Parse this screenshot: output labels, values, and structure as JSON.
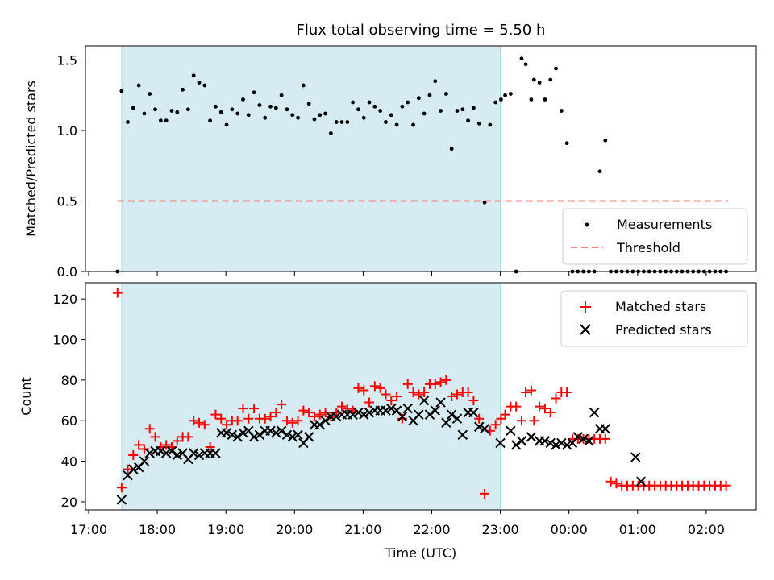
{
  "figure": {
    "title": "Flux total observing time = 5.50 h",
    "xlabel": "Time (UTC)",
    "x_tick_labels": [
      "17:00",
      "18:00",
      "19:00",
      "20:00",
      "21:00",
      "22:00",
      "23:00",
      "00:00",
      "01:00",
      "02:00"
    ]
  },
  "colors": {
    "span": "#add8e6",
    "measurements": "#000000",
    "threshold": "#ff7f7f",
    "matched": "#ff0000",
    "predicted": "#000000"
  },
  "chart_data": [
    {
      "type": "scatter",
      "panel": "top",
      "ylabel": "Matched/Predicted stars",
      "ylim": [
        0,
        1.6
      ],
      "y_ticks": [
        0.0,
        0.5,
        1.0,
        1.5
      ],
      "y_tick_labels": [
        "0.0",
        "0.5",
        "1.0",
        "1.5"
      ],
      "x_unit": "hours after 17:00 UTC",
      "shaded_span": [
        0.48,
        6.0
      ],
      "threshold": {
        "name": "Threshold",
        "value": 0.5,
        "x_range": [
          0.42,
          9.32
        ]
      },
      "legend": {
        "placement": "lower right",
        "entries": [
          "Measurements",
          "Threshold"
        ]
      },
      "series": [
        {
          "name": "Measurements",
          "x": [
            0.42,
            0.48,
            0.57,
            0.65,
            0.73,
            0.81,
            0.89,
            0.97,
            1.05,
            1.13,
            1.21,
            1.29,
            1.37,
            1.45,
            1.53,
            1.61,
            1.69,
            1.77,
            1.85,
            1.93,
            2.01,
            2.09,
            2.17,
            2.25,
            2.33,
            2.41,
            2.49,
            2.57,
            2.65,
            2.73,
            2.81,
            2.89,
            2.97,
            3.05,
            3.13,
            3.21,
            3.29,
            3.37,
            3.45,
            3.53,
            3.61,
            3.69,
            3.77,
            3.85,
            3.93,
            4.01,
            4.09,
            4.17,
            4.25,
            4.33,
            4.41,
            4.49,
            4.57,
            4.65,
            4.73,
            4.81,
            4.89,
            4.97,
            5.05,
            5.13,
            5.21,
            5.29,
            5.37,
            5.45,
            5.53,
            5.61,
            5.69,
            5.77,
            5.85,
            5.93,
            6.01,
            6.07,
            6.15,
            6.23,
            6.31,
            6.37,
            6.45,
            6.49,
            6.57,
            6.65,
            6.73,
            6.81,
            6.89,
            6.97,
            7.05,
            7.13,
            7.21,
            7.29,
            7.37,
            7.45,
            7.53,
            7.61,
            7.69,
            7.77,
            7.85,
            7.93,
            8.01,
            8.09,
            8.17,
            8.25,
            8.33,
            8.41,
            8.49,
            8.57,
            8.65,
            8.73,
            8.81,
            8.89,
            8.97,
            9.05,
            9.13,
            9.21,
            9.29
          ],
          "y": [
            0.0,
            1.28,
            1.06,
            1.16,
            1.32,
            1.12,
            1.26,
            1.15,
            1.07,
            1.07,
            1.14,
            1.13,
            1.29,
            1.15,
            1.39,
            1.34,
            1.32,
            1.07,
            1.17,
            1.13,
            1.04,
            1.15,
            1.12,
            1.22,
            1.11,
            1.27,
            1.18,
            1.09,
            1.17,
            1.16,
            1.25,
            1.15,
            1.11,
            1.09,
            1.32,
            1.19,
            1.08,
            1.11,
            1.12,
            0.98,
            1.06,
            1.06,
            1.06,
            1.2,
            1.15,
            1.09,
            1.2,
            1.17,
            1.14,
            1.06,
            1.11,
            1.04,
            1.17,
            1.2,
            1.04,
            1.23,
            1.12,
            1.25,
            1.35,
            1.14,
            1.26,
            0.87,
            1.14,
            1.15,
            1.07,
            1.16,
            1.05,
            0.49,
            1.04,
            1.2,
            1.22,
            1.25,
            1.26,
            0.0,
            1.51,
            1.47,
            1.22,
            1.36,
            1.34,
            1.22,
            1.36,
            1.44,
            1.14,
            0.91,
            0.0,
            0.0,
            0.0,
            0.0,
            0.0,
            0.71,
            0.93,
            0.0,
            0.0,
            0.0,
            0.0,
            0.0,
            0.0,
            0.0,
            0.0,
            0.0,
            0.0,
            0.0,
            0.0,
            0.0,
            0.0,
            0.0,
            0.0,
            0.0,
            0.0,
            0.0,
            0.0,
            0.0,
            0.0
          ]
        }
      ]
    },
    {
      "type": "scatter",
      "panel": "bottom",
      "ylabel": "Count",
      "ylim": [
        16,
        128
      ],
      "y_ticks": [
        20,
        40,
        60,
        80,
        100,
        120
      ],
      "y_tick_labels": [
        "20",
        "40",
        "60",
        "80",
        "100",
        "120"
      ],
      "x_unit": "hours after 17:00 UTC",
      "shaded_span": [
        0.48,
        6.0
      ],
      "legend": {
        "placement": "upper right",
        "entries": [
          "Matched stars",
          "Predicted stars"
        ]
      },
      "series": [
        {
          "name": "Matched stars",
          "marker": "+",
          "x": [
            0.42,
            0.48,
            0.57,
            0.65,
            0.73,
            0.81,
            0.89,
            0.97,
            1.05,
            1.13,
            1.21,
            1.29,
            1.37,
            1.45,
            1.53,
            1.61,
            1.69,
            1.77,
            1.85,
            1.93,
            2.01,
            2.09,
            2.17,
            2.25,
            2.33,
            2.41,
            2.49,
            2.57,
            2.65,
            2.73,
            2.81,
            2.89,
            2.97,
            3.05,
            3.13,
            3.21,
            3.29,
            3.37,
            3.45,
            3.53,
            3.61,
            3.69,
            3.77,
            3.85,
            3.93,
            4.01,
            4.09,
            4.17,
            4.25,
            4.33,
            4.41,
            4.49,
            4.57,
            4.65,
            4.73,
            4.81,
            4.89,
            4.97,
            5.05,
            5.13,
            5.21,
            5.29,
            5.37,
            5.45,
            5.53,
            5.61,
            5.69,
            5.77,
            5.85,
            5.93,
            6.01,
            6.07,
            6.15,
            6.23,
            6.31,
            6.37,
            6.45,
            6.49,
            6.57,
            6.65,
            6.73,
            6.81,
            6.89,
            6.97,
            7.05,
            7.13,
            7.21,
            7.29,
            7.37,
            7.45,
            7.53,
            7.61,
            7.69,
            7.77,
            7.85,
            7.93,
            8.01,
            8.09,
            8.17,
            8.25,
            8.33,
            8.41,
            8.49,
            8.57,
            8.65,
            8.73,
            8.81,
            8.89,
            8.97,
            9.05,
            9.13,
            9.21,
            9.29
          ],
          "y": [
            123,
            27,
            36,
            43,
            48,
            46,
            56,
            52,
            47,
            48,
            47,
            50,
            52,
            52,
            60,
            59,
            58,
            47,
            63,
            61,
            58,
            60,
            60,
            66,
            61,
            66,
            61,
            61,
            62,
            64,
            68,
            60,
            59,
            60,
            65,
            64,
            62,
            63,
            64,
            62,
            64,
            67,
            66,
            65,
            76,
            75,
            69,
            77,
            76,
            73,
            70,
            72,
            61,
            78,
            74,
            73,
            74,
            78,
            78,
            79,
            80,
            72,
            73,
            74,
            74,
            70,
            61,
            24,
            55,
            58,
            61,
            63,
            67,
            67,
            60,
            74,
            75,
            60,
            67,
            66,
            64,
            71,
            74,
            74,
            51,
            51,
            51,
            51,
            51,
            51,
            51,
            30,
            29,
            28,
            28,
            28,
            28,
            28,
            28,
            28,
            28,
            28,
            28,
            28,
            28,
            28,
            28,
            28,
            28,
            28,
            28,
            28,
            28
          ]
        },
        {
          "name": "Predicted stars",
          "marker": "x",
          "x": [
            0.48,
            0.57,
            0.65,
            0.73,
            0.81,
            0.89,
            0.97,
            1.05,
            1.13,
            1.21,
            1.29,
            1.37,
            1.45,
            1.53,
            1.61,
            1.69,
            1.77,
            1.85,
            1.93,
            2.01,
            2.09,
            2.17,
            2.25,
            2.33,
            2.41,
            2.49,
            2.57,
            2.65,
            2.73,
            2.81,
            2.89,
            2.97,
            3.05,
            3.13,
            3.21,
            3.29,
            3.37,
            3.45,
            3.53,
            3.61,
            3.69,
            3.77,
            3.85,
            3.93,
            4.01,
            4.09,
            4.17,
            4.25,
            4.33,
            4.41,
            4.49,
            4.57,
            4.65,
            4.73,
            4.81,
            4.89,
            4.97,
            5.05,
            5.13,
            5.21,
            5.29,
            5.37,
            5.45,
            5.53,
            5.61,
            5.69,
            5.77,
            6.0,
            6.15,
            6.23,
            6.31,
            6.45,
            6.57,
            6.65,
            6.73,
            6.81,
            6.89,
            6.97,
            7.05,
            7.13,
            7.21,
            7.29,
            7.37,
            7.45,
            7.53,
            7.97,
            8.05
          ],
          "y": [
            21,
            33,
            36,
            37,
            40,
            44,
            45,
            45,
            44,
            45,
            43,
            44,
            41,
            44,
            43,
            44,
            44,
            44,
            54,
            54,
            53,
            52,
            54,
            55,
            52,
            53,
            55,
            55,
            54,
            55,
            53,
            52,
            53,
            49,
            52,
            58,
            58,
            60,
            62,
            62,
            63,
            63,
            63,
            64,
            63,
            64,
            65,
            65,
            65,
            66,
            65,
            62,
            66,
            60,
            63,
            70,
            63,
            65,
            69,
            59,
            63,
            61,
            53,
            64,
            64,
            57,
            56,
            49,
            55,
            48,
            50,
            52,
            50,
            50,
            49,
            48,
            49,
            48,
            49,
            52,
            51,
            50,
            64,
            56,
            56,
            42,
            30
          ]
        }
      ]
    }
  ]
}
